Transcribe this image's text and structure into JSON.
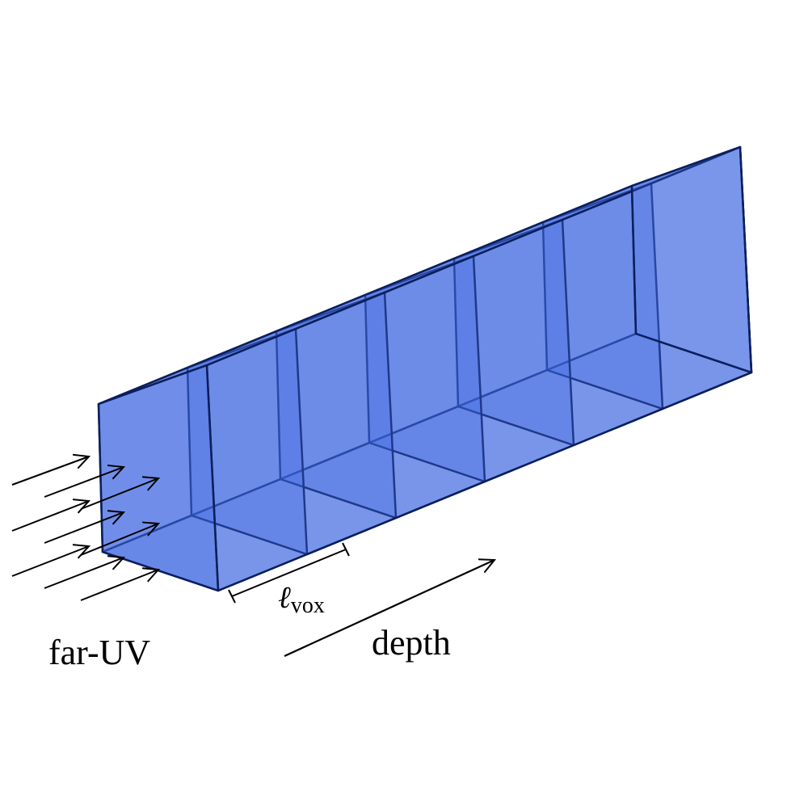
{
  "labels": {
    "source": "far-UV",
    "depth": "depth",
    "voxel_symbol": "ℓ",
    "voxel_subscript": "vox"
  },
  "voxel_count": 6,
  "colors": {
    "voxel_fill": "#4169e1",
    "edge": "#0b1f5c",
    "arrow": "#000000"
  }
}
